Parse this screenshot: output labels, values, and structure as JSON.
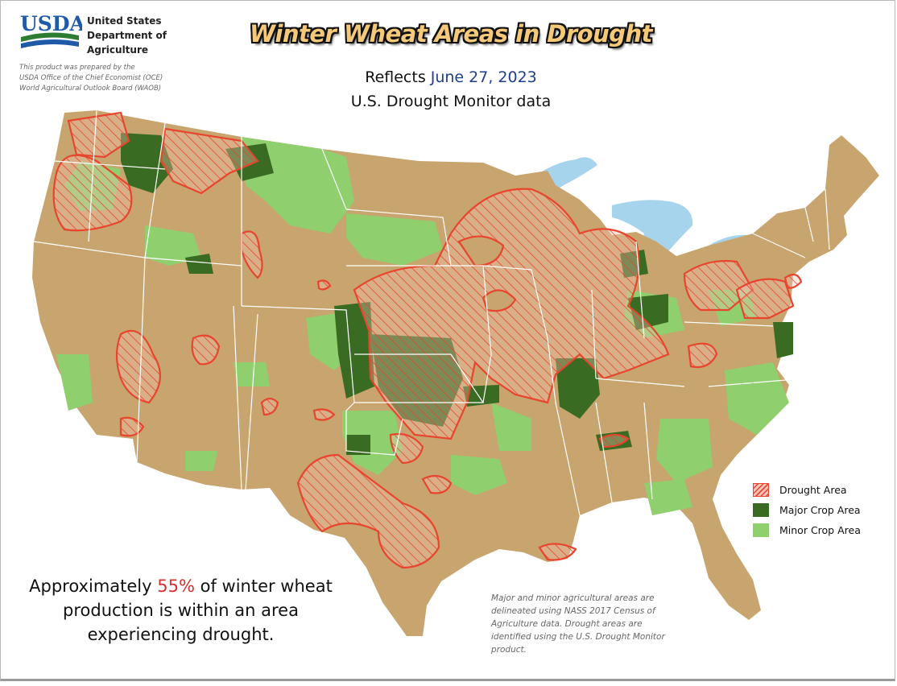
{
  "header": {
    "logo_text": "USDA",
    "agency_lines": [
      "United States",
      "Department of",
      "Agriculture"
    ],
    "credit_lines": [
      "This product was prepared by the",
      "USDA Office of the Chief Economist (OCE)",
      "World Agricultural Outlook Board (WAOB)"
    ],
    "title": "Winter Wheat Areas in Drought",
    "reflects_label": "Reflects",
    "reflects_date": "June 27, 2023",
    "subtitle": "U.S. Drought Monitor data"
  },
  "legend": {
    "items": [
      {
        "label": "Drought Area",
        "color": "#e8452e"
      },
      {
        "label": "Major Crop Area",
        "color": "#3a6b22"
      },
      {
        "label": "Minor Crop Area",
        "color": "#8fcf6e"
      }
    ]
  },
  "summary": {
    "prefix": "Approximately ",
    "percent": "55%",
    "line1_suffix": " of winter wheat",
    "line2": "production is within an area",
    "line3": "experiencing drought."
  },
  "note": {
    "lines": [
      "Major and minor agricultural areas are",
      "delineated using NASS 2017 Census of",
      "Agriculture data.  Drought areas are",
      "identified using the U.S. Drought Monitor",
      "product."
    ]
  },
  "colors": {
    "land": "#c8a46e",
    "water": "#a6d4ec",
    "major_crop": "#3a6b22",
    "minor_crop": "#8fcf6e",
    "drought_outline": "#e8452e"
  }
}
